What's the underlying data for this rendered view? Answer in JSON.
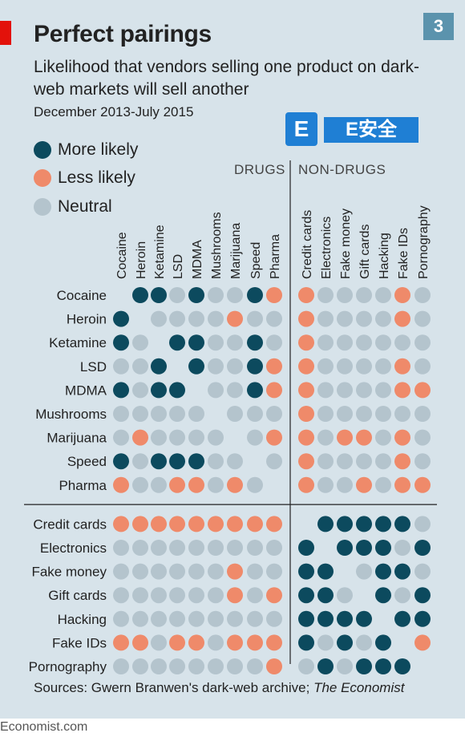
{
  "header": {
    "badge": "3",
    "title": "Perfect pairings",
    "subtitle": "Likelihood that vendors selling one product on dark-web markets will sell another",
    "dates": "December 2013-July 2015"
  },
  "watermark": {
    "icon_letter": "E",
    "text": "E安全"
  },
  "legend": [
    {
      "label": "More likely",
      "color": "#0c4a5e"
    },
    {
      "label": "Less likely",
      "color": "#ef8a6a"
    },
    {
      "label": "Neutral",
      "color": "#b4c4cd"
    }
  ],
  "groups": {
    "drugs": "DRUGS",
    "non_drugs": "NON-DRUGS"
  },
  "footer": {
    "source_prefix": "Sources: Gwern Branwen's dark-web archive; ",
    "source_italic": "The Economist",
    "site": "Economist.com"
  },
  "chart_data": {
    "type": "heatmap",
    "value_key": {
      "M": "More likely",
      "L": "Less likely",
      "N": "Neutral",
      "": "none (same product)"
    },
    "columns": [
      "Cocaine",
      "Heroin",
      "Ketamine",
      "LSD",
      "MDMA",
      "Mushrooms",
      "Marijuana",
      "Speed",
      "Pharma",
      "Credit cards",
      "Electronics",
      "Fake money",
      "Gift cards",
      "Hacking",
      "Fake IDs",
      "Pornography"
    ],
    "rows": [
      "Cocaine",
      "Heroin",
      "Ketamine",
      "LSD",
      "MDMA",
      "Mushrooms",
      "Marijuana",
      "Speed",
      "Pharma",
      "Credit cards",
      "Electronics",
      "Fake money",
      "Gift cards",
      "Hacking",
      "Fake IDs",
      "Pornography"
    ],
    "column_groups": [
      {
        "name": "DRUGS",
        "count": 9
      },
      {
        "name": "NON-DRUGS",
        "count": 7
      }
    ],
    "values": [
      [
        "",
        "M",
        "M",
        "N",
        "M",
        "N",
        "N",
        "M",
        "L",
        "L",
        "N",
        "N",
        "N",
        "N",
        "L",
        "N"
      ],
      [
        "M",
        "",
        "N",
        "N",
        "N",
        "N",
        "L",
        "N",
        "N",
        "L",
        "N",
        "N",
        "N",
        "N",
        "L",
        "N"
      ],
      [
        "M",
        "N",
        "",
        "M",
        "M",
        "N",
        "N",
        "M",
        "N",
        "L",
        "N",
        "N",
        "N",
        "N",
        "N",
        "N"
      ],
      [
        "N",
        "N",
        "M",
        "",
        "M",
        "N",
        "N",
        "M",
        "L",
        "L",
        "N",
        "N",
        "N",
        "N",
        "L",
        "N"
      ],
      [
        "M",
        "N",
        "M",
        "M",
        "",
        "N",
        "N",
        "M",
        "L",
        "L",
        "N",
        "N",
        "N",
        "N",
        "L",
        "L"
      ],
      [
        "N",
        "N",
        "N",
        "N",
        "N",
        "",
        "N",
        "N",
        "N",
        "L",
        "N",
        "N",
        "N",
        "N",
        "N",
        "N"
      ],
      [
        "N",
        "L",
        "N",
        "N",
        "N",
        "N",
        "",
        "N",
        "L",
        "L",
        "N",
        "L",
        "L",
        "N",
        "L",
        "N"
      ],
      [
        "M",
        "N",
        "M",
        "M",
        "M",
        "N",
        "N",
        "",
        "N",
        "L",
        "N",
        "N",
        "N",
        "N",
        "L",
        "N"
      ],
      [
        "L",
        "N",
        "N",
        "L",
        "L",
        "N",
        "L",
        "N",
        "",
        "L",
        "N",
        "N",
        "L",
        "N",
        "L",
        "L"
      ],
      [
        "L",
        "L",
        "L",
        "L",
        "L",
        "L",
        "L",
        "L",
        "L",
        "",
        "M",
        "M",
        "M",
        "M",
        "M",
        "N"
      ],
      [
        "N",
        "N",
        "N",
        "N",
        "N",
        "N",
        "N",
        "N",
        "N",
        "M",
        "",
        "M",
        "M",
        "M",
        "N",
        "M"
      ],
      [
        "N",
        "N",
        "N",
        "N",
        "N",
        "N",
        "L",
        "N",
        "N",
        "M",
        "M",
        "",
        "N",
        "M",
        "M",
        "N"
      ],
      [
        "N",
        "N",
        "N",
        "N",
        "N",
        "N",
        "L",
        "N",
        "L",
        "M",
        "M",
        "N",
        "",
        "M",
        "N",
        "M"
      ],
      [
        "N",
        "N",
        "N",
        "N",
        "N",
        "N",
        "N",
        "N",
        "N",
        "M",
        "M",
        "M",
        "M",
        "",
        "M",
        "M"
      ],
      [
        "L",
        "L",
        "N",
        "L",
        "L",
        "N",
        "L",
        "L",
        "L",
        "M",
        "N",
        "M",
        "N",
        "M",
        "",
        "L"
      ],
      [
        "N",
        "N",
        "N",
        "N",
        "N",
        "N",
        "N",
        "N",
        "L",
        "N",
        "M",
        "N",
        "M",
        "M",
        "M",
        ""
      ]
    ]
  }
}
